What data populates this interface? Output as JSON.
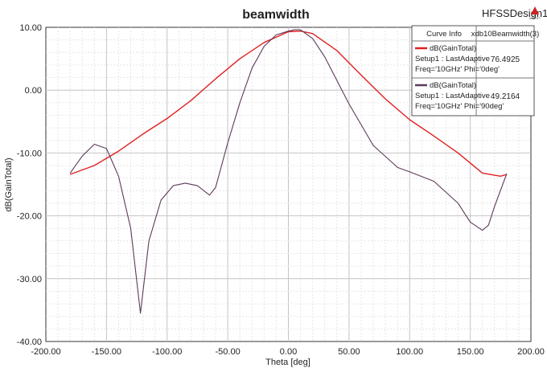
{
  "app": {
    "design_name": "HFSSDesign1",
    "logo_text": "ANSOFT"
  },
  "chart_data": {
    "type": "line",
    "title": "beamwidth",
    "xlabel": "Theta [deg]",
    "ylabel": "dB(GainTotal)",
    "xlim": [
      -200,
      200
    ],
    "ylim": [
      -40,
      10
    ],
    "x_ticks": [
      "-200.00",
      "-150.00",
      "-100.00",
      "-50.00",
      "0.00",
      "50.00",
      "100.00",
      "150.00",
      "200.00"
    ],
    "y_ticks": [
      "10.00",
      "0.00",
      "-10.00",
      "-20.00",
      "-30.00",
      "-40.00"
    ],
    "grid": true,
    "legend_position": "top-right",
    "legend_header": {
      "curve_info": "Curve Info",
      "value_column": "xdb10Beamwidth(3)"
    },
    "series": [
      {
        "name": "dB(GainTotal)",
        "legend_lines": [
          "dB(GainTotal)",
          "Setup1 : LastAdaptive",
          "Freq='10GHz' Phi='0deg'"
        ],
        "beamwidth": "76.4925",
        "color": "#e02020",
        "x": [
          -180,
          -160,
          -140,
          -120,
          -100,
          -80,
          -60,
          -40,
          -20,
          0,
          10,
          20,
          40,
          60,
          80,
          100,
          120,
          140,
          160,
          175,
          180
        ],
        "y": [
          -13.4,
          -12.0,
          -9.7,
          -7.0,
          -4.5,
          -1.6,
          1.8,
          5.0,
          7.6,
          9.3,
          9.4,
          9.0,
          6.3,
          2.4,
          -1.4,
          -4.7,
          -7.3,
          -10.0,
          -13.2,
          -13.7,
          -13.4
        ]
      },
      {
        "name": "dB(GainTotal)",
        "legend_lines": [
          "dB(GainTotal)",
          "Setup1 : LastAdaptive",
          "Freq='10GHz' Phi='90deg'"
        ],
        "beamwidth": "49.2164",
        "color": "#5c3a5a",
        "x": [
          -180,
          -170,
          -160,
          -150,
          -140,
          -130,
          -122,
          -115,
          -105,
          -95,
          -85,
          -75,
          -65,
          -60,
          -50,
          -40,
          -30,
          -20,
          -10,
          0,
          5,
          10,
          20,
          30,
          50,
          70,
          90,
          100,
          120,
          140,
          150,
          160,
          165,
          170,
          180
        ],
        "y": [
          -13.2,
          -10.5,
          -8.6,
          -9.3,
          -13.7,
          -22.0,
          -35.5,
          -24.0,
          -17.5,
          -15.2,
          -14.8,
          -15.2,
          -16.7,
          -15.5,
          -8.4,
          -2.0,
          3.5,
          7.0,
          8.8,
          9.4,
          9.6,
          9.6,
          8.2,
          5.3,
          -2.2,
          -8.8,
          -12.3,
          -13.0,
          -14.5,
          -18.0,
          -21.0,
          -22.3,
          -21.5,
          -18.5,
          -13.3
        ]
      }
    ]
  }
}
